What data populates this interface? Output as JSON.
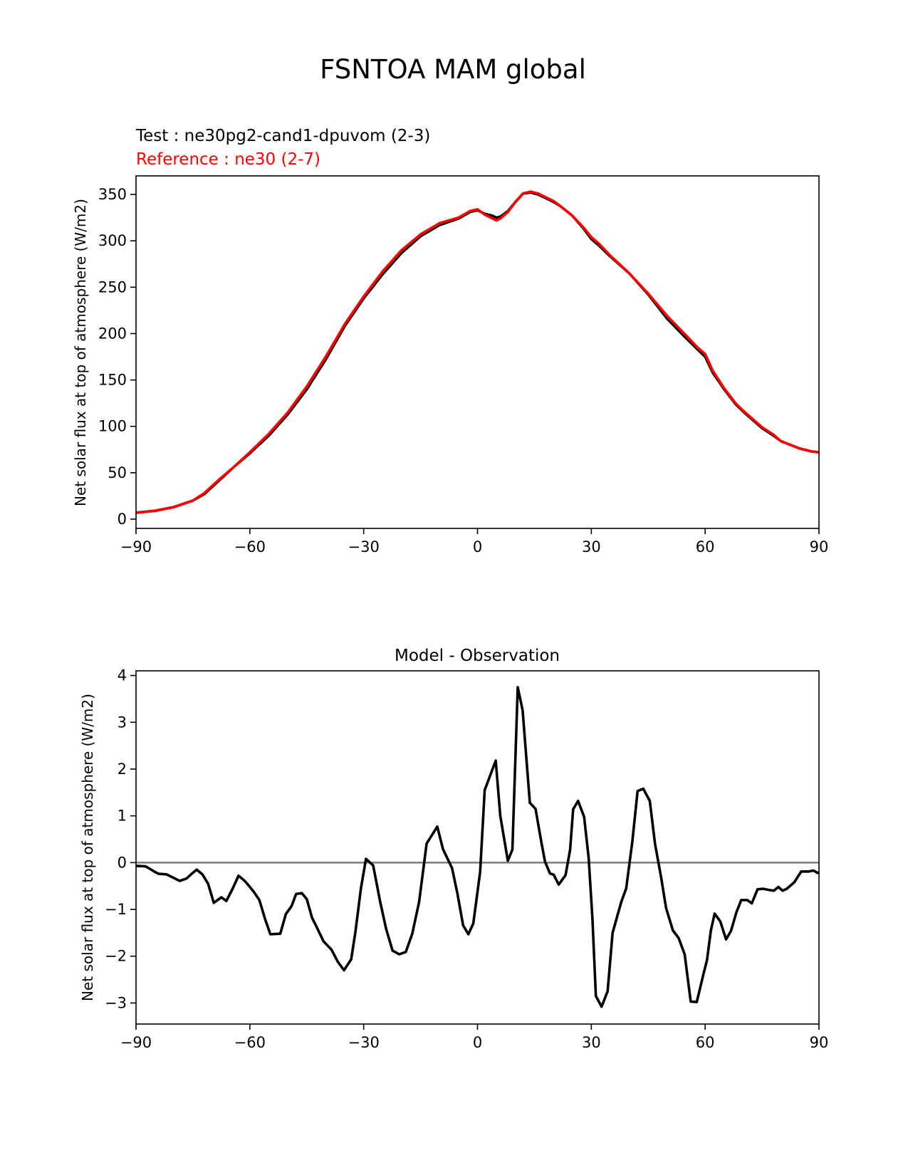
{
  "suptitle": "FSNTOA MAM global",
  "chart_data": [
    {
      "type": "line",
      "test_label": "Test : ne30pg2-cand1-dpuvom (2-3)",
      "ref_label": "Reference : ne30 (2-7)",
      "xlim": [
        -90,
        90
      ],
      "ylim": [
        -10,
        370
      ],
      "xticks": [
        -90,
        -60,
        -30,
        0,
        30,
        60,
        90
      ],
      "xtick_labels": [
        "−90",
        "−60",
        "−30",
        "0",
        "30",
        "60",
        "90"
      ],
      "yticks": [
        0,
        50,
        100,
        150,
        200,
        250,
        300,
        350
      ],
      "ytick_labels": [
        "0",
        "50",
        "100",
        "150",
        "200",
        "250",
        "300",
        "350"
      ],
      "ylabel": "Net solar flux at top of atmosphere (W/m2)",
      "colors": {
        "test": "#000000",
        "reference": "#ff0000"
      },
      "series": [
        {
          "name": "Test",
          "x": [
            -90,
            -85,
            -80,
            -75,
            -72,
            -68,
            -64,
            -60,
            -55,
            -50,
            -45,
            -40,
            -35,
            -30,
            -25,
            -20,
            -15,
            -10,
            -5,
            -2,
            0,
            2,
            4,
            5,
            6,
            8,
            10,
            12,
            14,
            16,
            18,
            20,
            22,
            25,
            28,
            30,
            32,
            35,
            40,
            45,
            50,
            55,
            58,
            60,
            62,
            65,
            68,
            70,
            75,
            78,
            80,
            85,
            88,
            90
          ],
          "y": [
            7,
            9,
            13,
            20,
            27,
            42,
            57,
            71,
            90,
            113,
            140,
            172,
            208,
            238,
            264,
            287,
            305,
            317,
            324,
            331,
            333,
            329,
            327,
            325,
            326,
            332,
            342,
            351,
            352,
            350,
            346,
            342,
            337,
            327,
            313,
            302,
            295,
            283,
            265,
            242,
            216,
            195,
            183,
            175,
            158,
            140,
            124,
            116,
            98,
            90,
            84,
            76,
            73,
            72
          ]
        },
        {
          "name": "Reference",
          "x": [
            -90,
            -85,
            -80,
            -75,
            -72,
            -68,
            -64,
            -60,
            -55,
            -50,
            -45,
            -40,
            -35,
            -30,
            -25,
            -20,
            -15,
            -10,
            -5,
            -2,
            0,
            2,
            4,
            5,
            6,
            8,
            10,
            12,
            14,
            16,
            18,
            20,
            22,
            25,
            28,
            30,
            32,
            35,
            40,
            45,
            50,
            55,
            58,
            60,
            62,
            65,
            68,
            70,
            75,
            78,
            80,
            85,
            88,
            90
          ],
          "y": [
            7,
            9,
            13,
            20,
            28,
            43,
            57,
            72,
            92,
            115,
            143,
            175,
            210,
            240,
            267,
            290,
            307,
            319,
            325,
            332,
            334,
            328,
            324,
            322,
            324,
            331,
            342,
            351,
            353,
            351,
            347,
            343,
            337,
            327,
            314,
            304,
            297,
            284,
            265,
            243,
            219,
            198,
            185,
            178,
            160,
            141,
            125,
            117,
            99,
            91,
            84,
            76,
            73,
            72
          ]
        }
      ]
    },
    {
      "type": "line",
      "title": "Model - Observation",
      "xlim": [
        -90,
        90
      ],
      "ylim": [
        -3.45,
        4.1
      ],
      "xticks": [
        -90,
        -60,
        -30,
        0,
        30,
        60,
        90
      ],
      "xtick_labels": [
        "−90",
        "−60",
        "−30",
        "0",
        "30",
        "60",
        "90"
      ],
      "yticks": [
        -3,
        -2,
        -1,
        0,
        1,
        2,
        3,
        4
      ],
      "ytick_labels": [
        "−3",
        "−2",
        "−1",
        "0",
        "1",
        "2",
        "3",
        "4"
      ],
      "ylabel": "Net solar flux at top of atmosphere (W/m2)",
      "colors": {
        "diff": "#000000",
        "zero_line": "#808080"
      },
      "zero_line": 0,
      "series": [
        {
          "name": "Model - Observation",
          "x": [
            -90,
            -87.5,
            -86,
            -85,
            -84,
            -82,
            -80,
            -78.5,
            -76.7,
            -75.5,
            -74,
            -72.5,
            -71,
            -69.5,
            -67.5,
            -66.2,
            -64.5,
            -63,
            -61.5,
            -60.5,
            -59,
            -57.5,
            -56,
            -54.6,
            -52,
            -50.5,
            -49,
            -47.8,
            -46.3,
            -45,
            -43.6,
            -42.3,
            -40.6,
            -38.5,
            -36.8,
            -35.2,
            -33.3,
            -32.2,
            -30.7,
            -29.4,
            -27.5,
            -25.7,
            -24.1,
            -22.4,
            -20.6,
            -18.9,
            -17.2,
            -15.4,
            -13.4,
            -10.6,
            -9.1,
            -6.7,
            -5.3,
            -3.8,
            -2.4,
            -1.1,
            0.7,
            1.9,
            4.8,
            6,
            8,
            9.2,
            10.6,
            11.9,
            13.8,
            15.3,
            16.8,
            17.8,
            19.1,
            20.1,
            21.4,
            23.2,
            24.4,
            25.2,
            26.5,
            28.1,
            29.3,
            30.3,
            31.2,
            32.7,
            34.3,
            35.6,
            37.9,
            39.2,
            40.8,
            42.2,
            43.7,
            45.4,
            46.8,
            48.4,
            49.7,
            51.5,
            53,
            54.6,
            56.2,
            57.8,
            59.5,
            60.5,
            61.5,
            62.5,
            64,
            65.5,
            66.8,
            68.2,
            69.5,
            71.1,
            72.3,
            73.8,
            75.3,
            76.6,
            78.1,
            79.3,
            80.4,
            81.5,
            83.5,
            85.3,
            87.2,
            88.6,
            89.6,
            90
          ],
          "y": [
            -0.07,
            -0.08,
            -0.15,
            -0.2,
            -0.24,
            -0.25,
            -0.33,
            -0.39,
            -0.34,
            -0.25,
            -0.15,
            -0.25,
            -0.45,
            -0.86,
            -0.74,
            -0.82,
            -0.55,
            -0.28,
            -0.38,
            -0.47,
            -0.62,
            -0.8,
            -1.2,
            -1.53,
            -1.52,
            -1.1,
            -0.93,
            -0.67,
            -0.65,
            -0.78,
            -1.18,
            -1.39,
            -1.68,
            -1.86,
            -2.12,
            -2.3,
            -2.07,
            -1.5,
            -0.54,
            0.08,
            -0.06,
            -0.82,
            -1.41,
            -1.88,
            -1.96,
            -1.91,
            -1.52,
            -0.84,
            0.41,
            0.77,
            0.29,
            -0.12,
            -0.66,
            -1.34,
            -1.53,
            -1.3,
            -0.2,
            1.55,
            2.18,
            1,
            0.04,
            0.28,
            3.75,
            3.25,
            1.28,
            1.15,
            0.45,
            0.02,
            -0.23,
            -0.26,
            -0.47,
            -0.27,
            0.27,
            1.14,
            1.32,
            0.98,
            0.1,
            -1.2,
            -2.85,
            -3.08,
            -2.75,
            -1.5,
            -0.84,
            -0.55,
            0.45,
            1.53,
            1.58,
            1.32,
            0.4,
            -0.32,
            -0.97,
            -1.45,
            -1.61,
            -1.96,
            -2.97,
            -2.98,
            -2.4,
            -2.08,
            -1.45,
            -1.09,
            -1.26,
            -1.64,
            -1.46,
            -1.07,
            -0.8,
            -0.8,
            -0.87,
            -0.57,
            -0.56,
            -0.58,
            -0.6,
            -0.52,
            -0.6,
            -0.56,
            -0.42,
            -0.19,
            -0.19,
            -0.17,
            -0.22,
            -0.21
          ]
        }
      ]
    }
  ]
}
